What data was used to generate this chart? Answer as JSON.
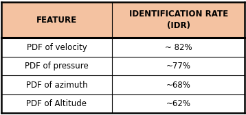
{
  "header_col1": "FEATURE",
  "header_col2": "IDENTIFICATION RATE\n(IDR)",
  "rows": [
    [
      "PDF of velocity",
      "~ 82%"
    ],
    [
      "PDF of pressure",
      "~77%"
    ],
    [
      "PDF of azimuth",
      "~68%"
    ],
    [
      "PDF of Altitude",
      "~62%"
    ]
  ],
  "header_bg": "#F4C2A1",
  "header_text_color": "#000000",
  "row_bg": "#FFFFFF",
  "row_text_color": "#000000",
  "border_color": "#000000",
  "col_split": 0.455,
  "header_fontsize": 8.5,
  "row_fontsize": 8.5,
  "fig_width": 3.58,
  "fig_height": 1.68,
  "dpi": 100
}
